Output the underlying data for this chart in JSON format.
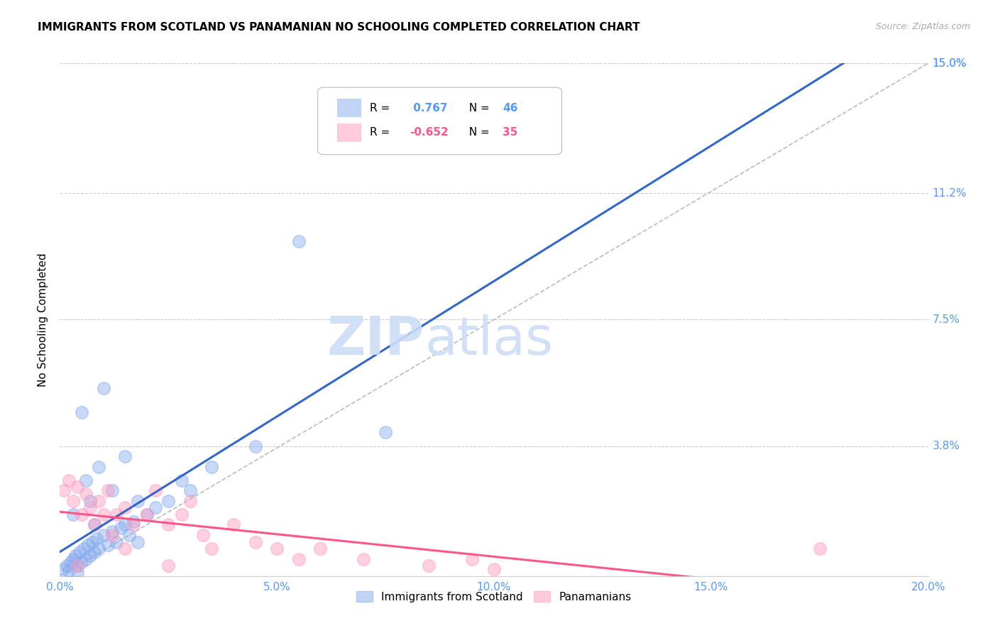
{
  "title": "IMMIGRANTS FROM SCOTLAND VS PANAMANIAN NO SCHOOLING COMPLETED CORRELATION CHART",
  "source": "Source: ZipAtlas.com",
  "ylabel": "No Schooling Completed",
  "yticks": [
    "0.0%",
    "3.8%",
    "7.5%",
    "11.2%",
    "15.0%"
  ],
  "ytick_vals": [
    0.0,
    3.8,
    7.5,
    11.2,
    15.0
  ],
  "xtick_vals": [
    0.0,
    5.0,
    10.0,
    15.0,
    20.0
  ],
  "xtick_labels": [
    "0.0%",
    "5.0%",
    "10.0%",
    "15.0%",
    "20.0%"
  ],
  "scotland_color": "#85AAEE",
  "panama_color": "#FF99BB",
  "scotland_line_color": "#3366CC",
  "panama_line_color": "#FF5588",
  "diag_line_color": "#BBBBBB",
  "background_color": "#FFFFFF",
  "watermark_zip": "ZIP",
  "watermark_atlas": "atlas",
  "xmax": 20.0,
  "ymax": 15.0,
  "scotland_points": [
    [
      0.1,
      0.2
    ],
    [
      0.15,
      0.3
    ],
    [
      0.2,
      0.15
    ],
    [
      0.25,
      0.4
    ],
    [
      0.3,
      0.5
    ],
    [
      0.35,
      0.6
    ],
    [
      0.4,
      0.3
    ],
    [
      0.45,
      0.7
    ],
    [
      0.5,
      0.4
    ],
    [
      0.55,
      0.8
    ],
    [
      0.6,
      0.5
    ],
    [
      0.65,
      0.9
    ],
    [
      0.7,
      0.6
    ],
    [
      0.75,
      1.0
    ],
    [
      0.8,
      0.7
    ],
    [
      0.85,
      1.1
    ],
    [
      0.9,
      0.8
    ],
    [
      1.0,
      1.2
    ],
    [
      1.1,
      0.9
    ],
    [
      1.2,
      1.3
    ],
    [
      1.3,
      1.0
    ],
    [
      1.4,
      1.4
    ],
    [
      1.5,
      1.5
    ],
    [
      1.6,
      1.2
    ],
    [
      1.7,
      1.6
    ],
    [
      1.8,
      1.0
    ],
    [
      2.0,
      1.8
    ],
    [
      2.2,
      2.0
    ],
    [
      2.5,
      2.2
    ],
    [
      3.0,
      2.5
    ],
    [
      0.5,
      4.8
    ],
    [
      1.0,
      5.5
    ],
    [
      3.5,
      3.2
    ],
    [
      4.5,
      3.8
    ],
    [
      5.5,
      9.8
    ],
    [
      0.3,
      1.8
    ],
    [
      0.7,
      2.2
    ],
    [
      1.5,
      3.5
    ],
    [
      0.9,
      3.2
    ],
    [
      2.8,
      2.8
    ],
    [
      0.4,
      0.1
    ],
    [
      1.2,
      2.5
    ],
    [
      0.6,
      2.8
    ],
    [
      1.8,
      2.2
    ],
    [
      0.8,
      1.5
    ],
    [
      7.5,
      4.2
    ]
  ],
  "panama_points": [
    [
      0.1,
      2.5
    ],
    [
      0.2,
      2.8
    ],
    [
      0.3,
      2.2
    ],
    [
      0.4,
      2.6
    ],
    [
      0.5,
      1.8
    ],
    [
      0.6,
      2.4
    ],
    [
      0.7,
      2.0
    ],
    [
      0.8,
      1.5
    ],
    [
      0.9,
      2.2
    ],
    [
      1.0,
      1.8
    ],
    [
      1.1,
      2.5
    ],
    [
      1.2,
      1.2
    ],
    [
      1.3,
      1.8
    ],
    [
      1.5,
      2.0
    ],
    [
      1.7,
      1.5
    ],
    [
      2.0,
      1.8
    ],
    [
      2.2,
      2.5
    ],
    [
      2.5,
      1.5
    ],
    [
      2.8,
      1.8
    ],
    [
      3.0,
      2.2
    ],
    [
      3.3,
      1.2
    ],
    [
      3.5,
      0.8
    ],
    [
      4.0,
      1.5
    ],
    [
      4.5,
      1.0
    ],
    [
      5.0,
      0.8
    ],
    [
      5.5,
      0.5
    ],
    [
      6.0,
      0.8
    ],
    [
      7.0,
      0.5
    ],
    [
      8.5,
      0.3
    ],
    [
      9.5,
      0.5
    ],
    [
      10.0,
      0.2
    ],
    [
      0.4,
      0.3
    ],
    [
      1.5,
      0.8
    ],
    [
      17.5,
      0.8
    ],
    [
      2.5,
      0.3
    ]
  ]
}
